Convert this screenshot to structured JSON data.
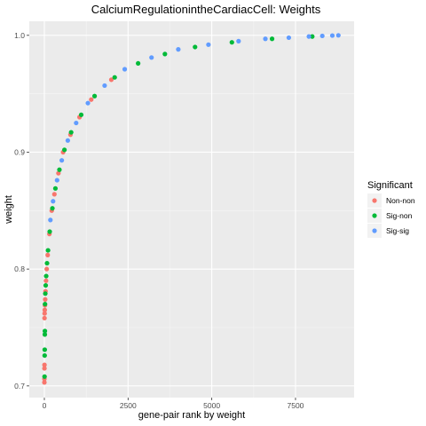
{
  "chart_data": {
    "type": "scatter",
    "title": "CalciumRegulationintheCardiacCell: Weights",
    "xlabel": "gene-pair rank by weight",
    "ylabel": "weight",
    "xlim": [
      -450,
      9250
    ],
    "ylim": [
      0.69,
      1.012
    ],
    "x_ticks": [
      0,
      2500,
      5000,
      7500
    ],
    "x_tick_labels": [
      "0",
      "2500",
      "5000",
      "7500"
    ],
    "y_ticks": [
      0.7,
      0.8,
      0.9,
      1.0
    ],
    "y_tick_labels": [
      "0.7",
      "0.8",
      "0.9",
      "1.0"
    ],
    "grid": true,
    "legend": {
      "title": "Significant",
      "position": "right",
      "entries": [
        {
          "label": "Non-non",
          "color": "#F8766D"
        },
        {
          "label": "Sig-non",
          "color": "#00BA38"
        },
        {
          "label": "Sig-sig",
          "color": "#619CFF"
        }
      ]
    },
    "series": [
      {
        "name": "Non-non",
        "color": "#F8766D",
        "x": [
          1,
          2,
          3,
          4,
          5,
          8,
          12,
          18,
          25,
          35,
          50,
          70,
          100,
          150,
          220,
          300,
          420,
          560,
          780,
          1050,
          1400,
          2000
        ],
        "y": [
          0.703,
          0.706,
          0.715,
          0.718,
          0.758,
          0.762,
          0.765,
          0.769,
          0.774,
          0.781,
          0.79,
          0.8,
          0.812,
          0.83,
          0.85,
          0.864,
          0.882,
          0.9,
          0.915,
          0.93,
          0.945,
          0.962
        ]
      },
      {
        "name": "Sig-non",
        "color": "#00BA38",
        "x": [
          6,
          9,
          11,
          14,
          16,
          20,
          28,
          40,
          55,
          80,
          110,
          160,
          240,
          330,
          450,
          600,
          800,
          1100,
          1500,
          2100,
          2800,
          3600,
          4500,
          5600,
          6800,
          8000
        ],
        "y": [
          0.708,
          0.726,
          0.731,
          0.744,
          0.747,
          0.77,
          0.779,
          0.786,
          0.794,
          0.805,
          0.816,
          0.832,
          0.852,
          0.869,
          0.885,
          0.902,
          0.917,
          0.932,
          0.948,
          0.964,
          0.976,
          0.984,
          0.99,
          0.994,
          0.997,
          0.999
        ]
      },
      {
        "name": "Sig-sig",
        "color": "#619CFF",
        "x": [
          180,
          260,
          380,
          520,
          700,
          950,
          1300,
          1800,
          2400,
          3200,
          4000,
          4900,
          5800,
          6600,
          7300,
          7900,
          8300,
          8600,
          8780
        ],
        "y": [
          0.842,
          0.858,
          0.876,
          0.893,
          0.91,
          0.925,
          0.942,
          0.957,
          0.971,
          0.981,
          0.988,
          0.992,
          0.995,
          0.997,
          0.998,
          0.999,
          0.9995,
          0.9998,
          1.0
        ]
      }
    ]
  }
}
